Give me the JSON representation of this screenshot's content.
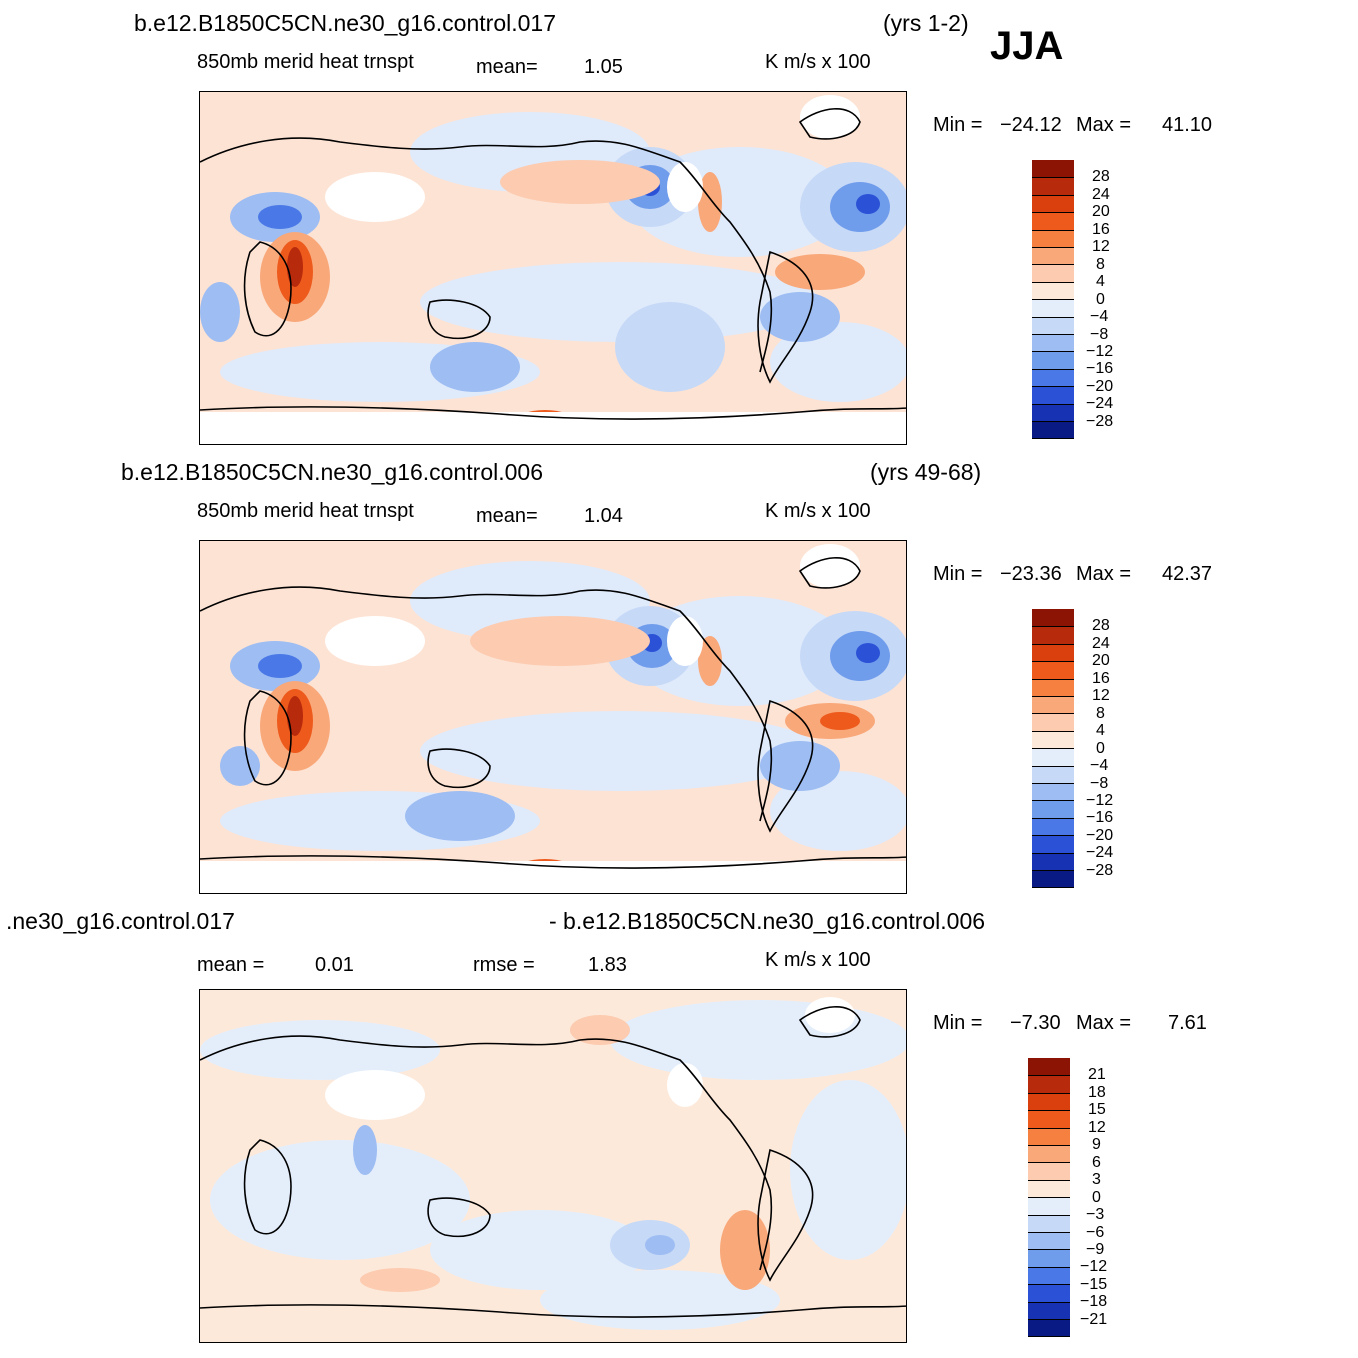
{
  "season": "JJA",
  "units": "K  m/s  x  100",
  "levels_main": [
    28,
    24,
    20,
    16,
    12,
    8,
    4,
    0,
    -4,
    -8,
    -12,
    -16,
    -20,
    -24,
    -28
  ],
  "levels_diff": [
    21,
    18,
    15,
    12,
    9,
    6,
    3,
    0,
    -3,
    -6,
    -9,
    -12,
    -15,
    -18,
    -21
  ],
  "colors": [
    "#8c1405",
    "#b82a0c",
    "#d9400d",
    "#ee5a1c",
    "#f5803f",
    "#f9a87a",
    "#fccbb0",
    "#fde9da",
    "#e4eefb",
    "#c6d9f7",
    "#9dbdf3",
    "#709cec",
    "#4a78e6",
    "#2b52d6",
    "#1733b3",
    "#0a1a85"
  ],
  "panels": [
    {
      "case": "b.e12.B1850C5CN.ne30_g16.control.017",
      "years": "(yrs 1-2)",
      "variable": "850mb  merid  heat  trnspt",
      "mean_label": "mean=",
      "mean_value": "1.05",
      "min_label": "Min  =",
      "min_value": "−24.12",
      "max_label": "Max  =",
      "max_value": "41.10"
    },
    {
      "case": "b.e12.B1850C5CN.ne30_g16.control.006",
      "years": "(yrs 49-68)",
      "variable": "850mb  merid  heat  trnspt",
      "mean_label": "mean=",
      "mean_value": "1.04",
      "min_label": "Min  =",
      "min_value": "−23.36",
      "max_label": "Max  =",
      "max_value": "42.37"
    },
    {
      "case_left": ".ne30_g16.control.017",
      "case_right": "- b.e12.B1850C5CN.ne30_g16.control.006",
      "mean_label": "mean  =",
      "mean_value": "0.01",
      "rmse_label": "rmse  =",
      "rmse_value": "1.83",
      "min_label": "Min  =",
      "min_value": "−7.30",
      "max_label": "Max  =",
      "max_value": "7.61"
    }
  ]
}
